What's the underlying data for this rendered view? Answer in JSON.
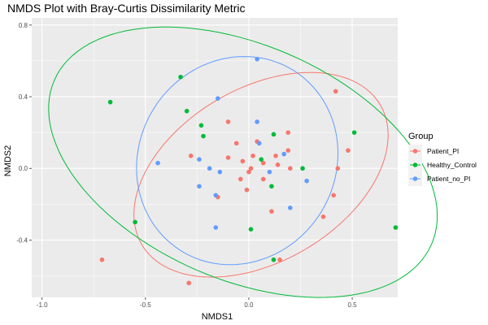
{
  "chart_data": {
    "type": "scatter",
    "title": "NMDS Plot with Bray-Curtis Dissimilarity Metric",
    "xlabel": "NMDS1",
    "ylabel": "NMDS2",
    "xlim": [
      -1.05,
      0.72
    ],
    "ylim": [
      -0.72,
      0.84
    ],
    "x_ticks": [
      -1.0,
      -0.5,
      0.0,
      0.5
    ],
    "x_tick_labels": [
      "-1.0",
      "-0.5",
      "0.0",
      "0.5"
    ],
    "y_ticks": [
      -0.4,
      0.0,
      0.4,
      0.8
    ],
    "y_tick_labels": [
      "-0.4",
      "0.0",
      "0.4",
      "0.8"
    ],
    "grid": true,
    "legend": {
      "title": "Group",
      "position": "right"
    },
    "series": [
      {
        "name": "Patient_PI",
        "color": "#F8766D",
        "points": [
          [
            -0.71,
            -0.51
          ],
          [
            -0.29,
            -0.64
          ],
          [
            -0.1,
            0.26
          ],
          [
            -0.1,
            0.06
          ],
          [
            -0.06,
            0.14
          ],
          [
            -0.04,
            -0.06
          ],
          [
            -0.01,
            -0.12
          ],
          [
            0.0,
            -0.02
          ],
          [
            0.01,
            0.0
          ],
          [
            0.02,
            0.07
          ],
          [
            0.04,
            0.15
          ],
          [
            0.07,
            -0.06
          ],
          [
            0.07,
            0.03
          ],
          [
            0.13,
            0.07
          ],
          [
            0.14,
            0.02
          ],
          [
            0.19,
            0.1
          ],
          [
            0.19,
            0.2
          ],
          [
            0.2,
            0.0
          ],
          [
            0.36,
            -0.27
          ],
          [
            0.41,
            -0.15
          ],
          [
            0.42,
            0.43
          ],
          [
            0.43,
            0.0
          ],
          [
            0.48,
            0.1
          ],
          [
            0.11,
            -0.24
          ],
          [
            -0.03,
            0.04
          ],
          [
            0.15,
            -0.51
          ],
          [
            -0.15,
            -0.16
          ],
          [
            -0.28,
            0.07
          ]
        ]
      },
      {
        "name": "Healthy_Control",
        "color": "#00BA38",
        "points": [
          [
            -0.67,
            0.37
          ],
          [
            -0.33,
            0.51
          ],
          [
            -0.3,
            0.32
          ],
          [
            -0.23,
            0.24
          ],
          [
            -0.22,
            0.18
          ],
          [
            -0.55,
            -0.3
          ],
          [
            0.01,
            -0.34
          ],
          [
            0.06,
            0.05
          ],
          [
            0.11,
            -0.1
          ],
          [
            0.12,
            0.19
          ],
          [
            0.26,
            0.0
          ],
          [
            0.51,
            0.2
          ],
          [
            0.71,
            -0.33
          ],
          [
            0.12,
            -0.51
          ]
        ]
      },
      {
        "name": "Patient_no_PI",
        "color": "#619CFF",
        "points": [
          [
            -0.44,
            0.03
          ],
          [
            -0.15,
            0.39
          ],
          [
            -0.24,
            0.05
          ],
          [
            -0.24,
            -0.1
          ],
          [
            -0.19,
            0.0
          ],
          [
            -0.16,
            -0.15
          ],
          [
            -0.16,
            -0.33
          ],
          [
            0.04,
            0.61
          ],
          [
            0.04,
            0.26
          ],
          [
            0.05,
            0.14
          ],
          [
            0.1,
            -0.02
          ],
          [
            0.17,
            0.08
          ],
          [
            0.2,
            -0.22
          ],
          [
            0.28,
            -0.07
          ],
          [
            -0.14,
            -0.02
          ]
        ]
      }
    ]
  }
}
